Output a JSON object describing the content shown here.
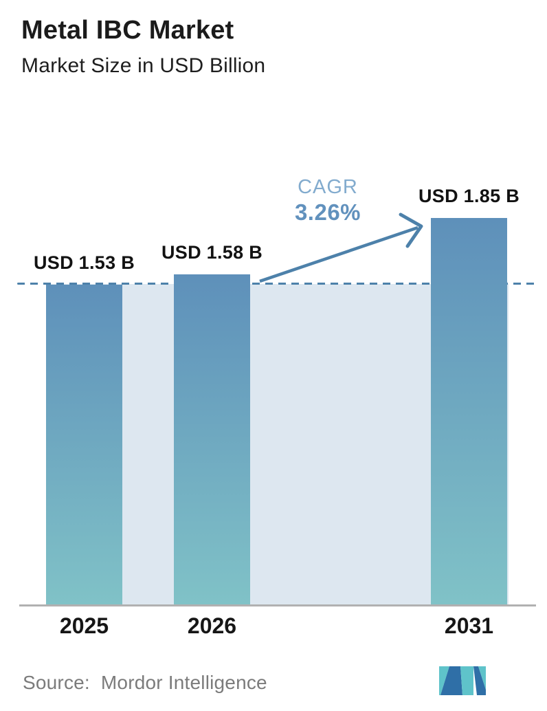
{
  "header": {
    "title": "Metal IBC Market",
    "subtitle": "Market Size in USD Billion"
  },
  "chart_data": {
    "type": "bar",
    "title": "Metal IBC Market",
    "subtitle": "Market Size in USD Billion",
    "unit": "USD Billion",
    "categories": [
      "2025",
      "2026",
      "2031"
    ],
    "values": [
      1.53,
      1.58,
      1.85
    ],
    "value_labels": [
      "USD 1.53 B",
      "USD 1.58 B",
      "USD 1.85 B"
    ],
    "cagr": {
      "label": "CAGR",
      "value": "3.26%"
    },
    "baseline": {
      "value": 1.53,
      "style": "dashed",
      "note": "dashed horizontal line at 2025 level"
    },
    "ylim": [
      0,
      2.2
    ],
    "grid": false,
    "legend": false,
    "annotations": [
      "growth arrow from 2026 bar to 2031 bar"
    ],
    "colors": {
      "bar_top": "#5e90ba",
      "bar_bottom": "#80c2c7",
      "background_band": "#dde7f0",
      "dashed_line": "#4d81aa",
      "arrow": "#4d81aa",
      "cagr_label": "#82abce",
      "cagr_value": "#6191bd",
      "axis": "#b1b1b1"
    }
  },
  "footer": {
    "source_label": "Source:",
    "source_value": "Mordor Intelligence",
    "logo_name": "mordor-intelligence-logo",
    "logo_colors": {
      "blue": "#2f6fa7",
      "teal": "#5fc3ca"
    }
  }
}
